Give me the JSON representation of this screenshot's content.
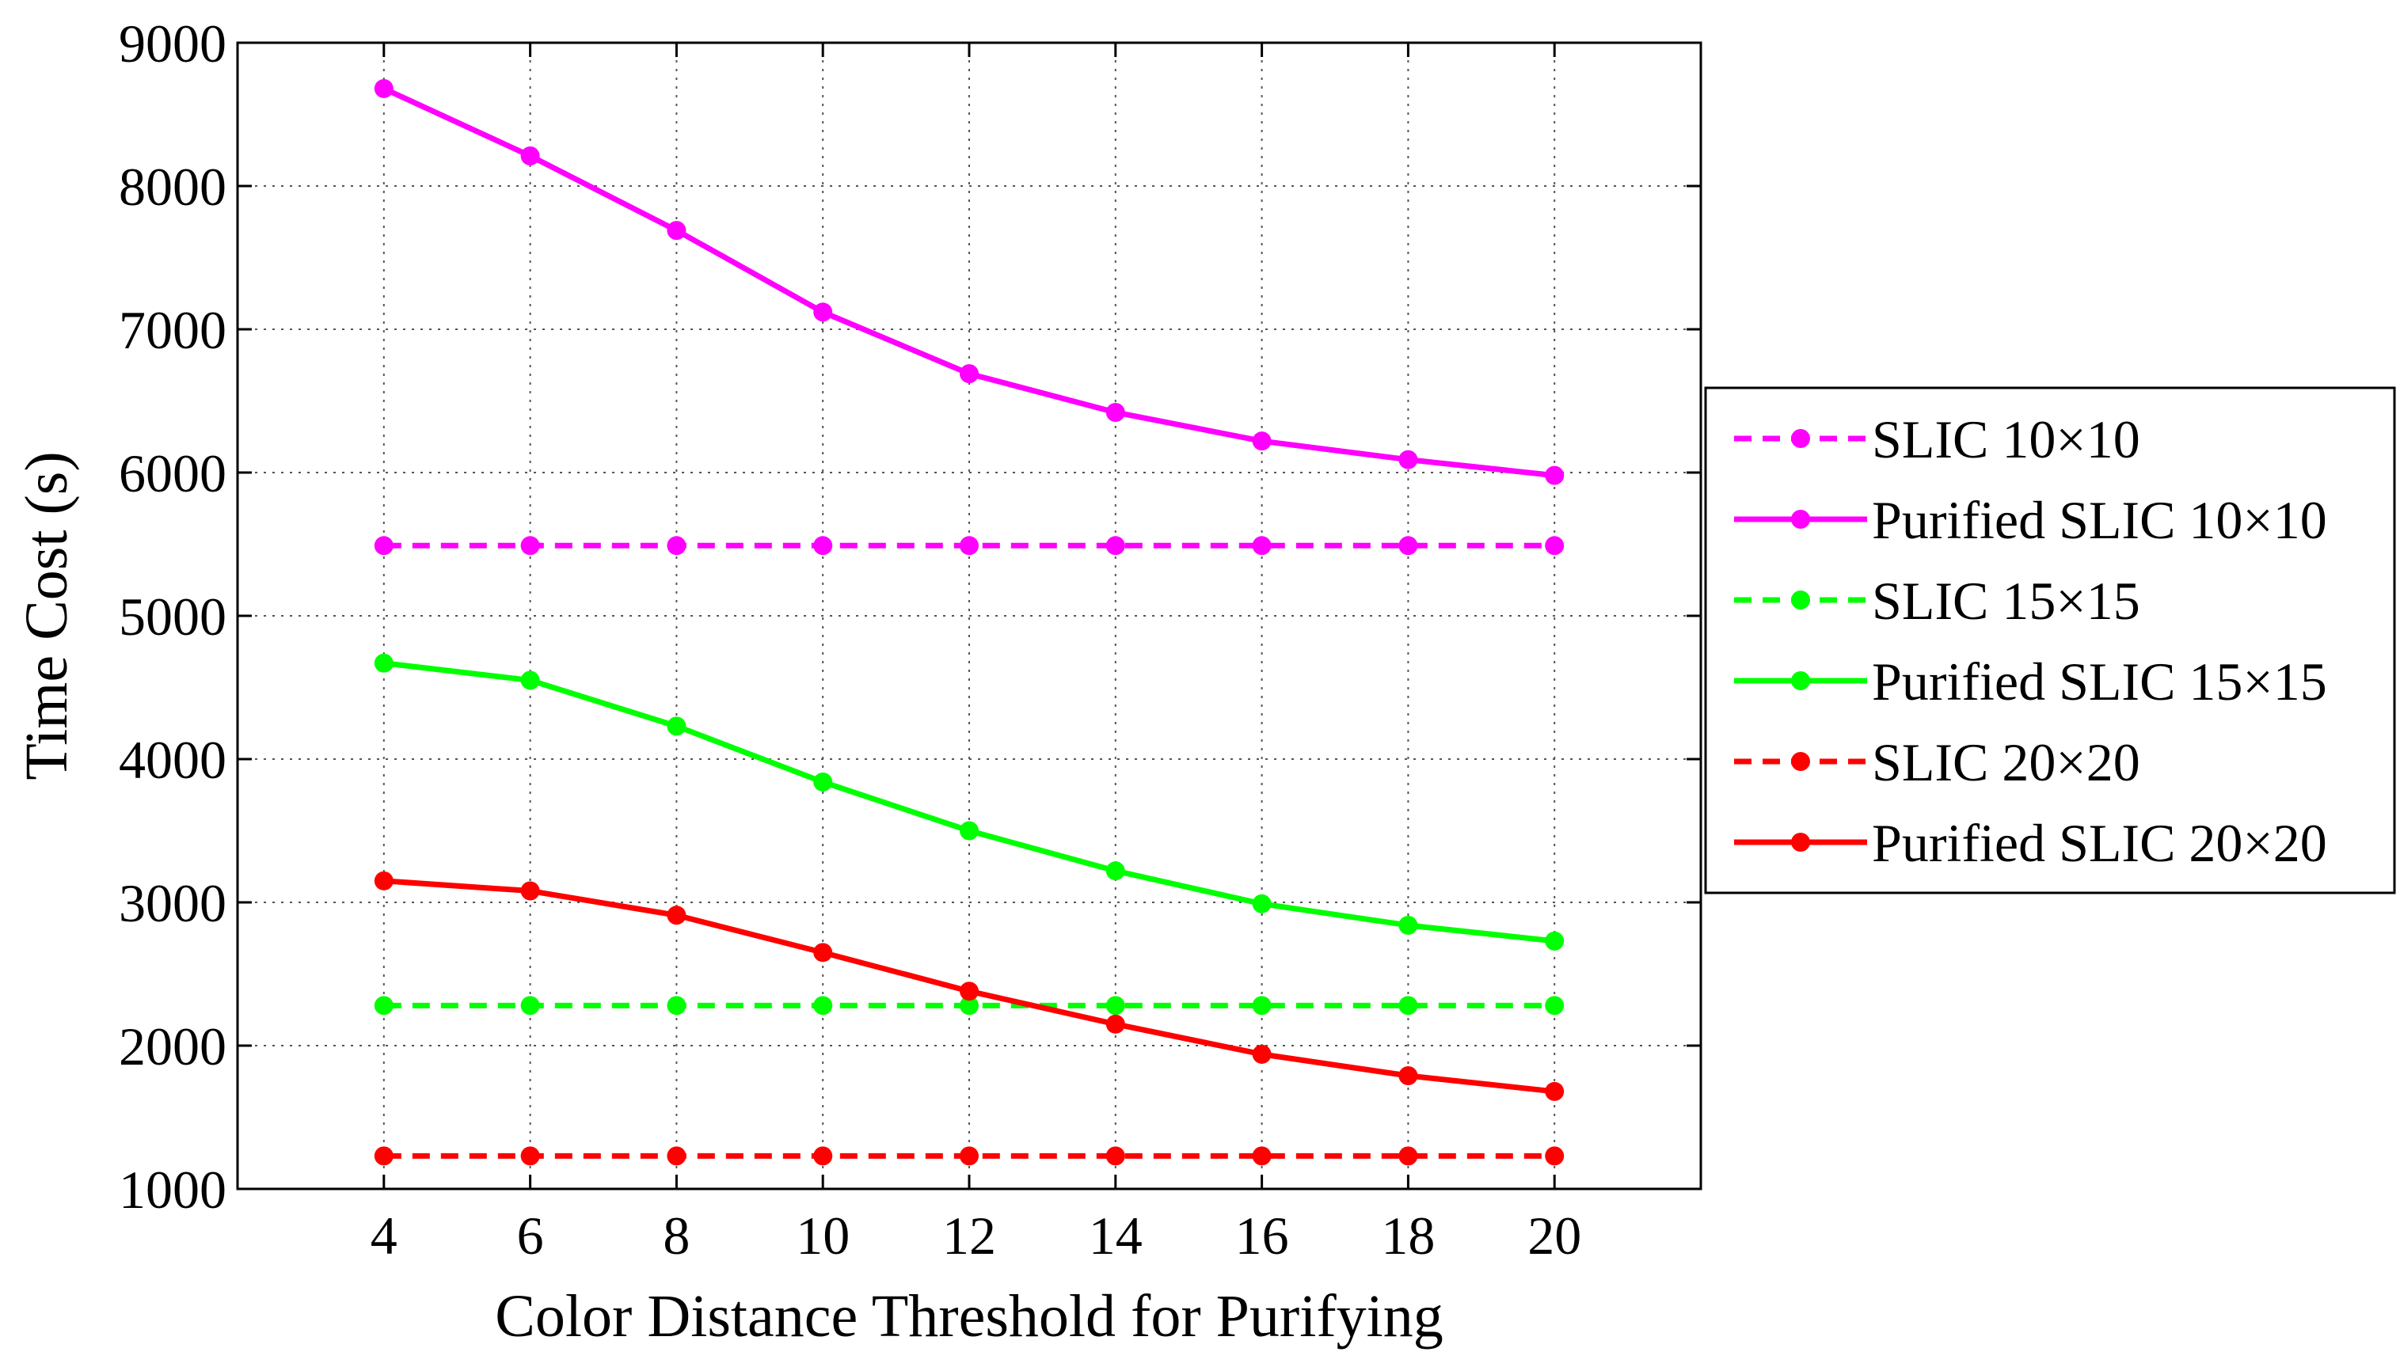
{
  "chart_data": {
    "type": "line",
    "title": "",
    "xlabel": "Color Distance Threshold for Purifying",
    "ylabel": "Time Cost (s)",
    "xlim": [
      2,
      22
    ],
    "ylim": [
      1000,
      9000
    ],
    "grid": true,
    "legend_position": "outside-right",
    "x": [
      4,
      6,
      8,
      10,
      12,
      14,
      16,
      18,
      20
    ],
    "xticks": [
      "4",
      "6",
      "8",
      "10",
      "12",
      "14",
      "16",
      "18",
      "20"
    ],
    "yticks": [
      "1000",
      "2000",
      "3000",
      "4000",
      "5000",
      "6000",
      "7000",
      "8000",
      "9000"
    ],
    "series": [
      {
        "name": "SLIC 10×10",
        "color": "#ff00ff",
        "style": "dashed",
        "values": [
          5490,
          5490,
          5490,
          5490,
          5490,
          5490,
          5490,
          5490,
          5490
        ]
      },
      {
        "name": "Purified SLIC 10×10",
        "color": "#ff00ff",
        "style": "solid",
        "values": [
          8680,
          8210,
          7690,
          7120,
          6690,
          6420,
          6220,
          6090,
          5980
        ]
      },
      {
        "name": "SLIC 15×15",
        "color": "#00ff00",
        "style": "dashed",
        "values": [
          2280,
          2280,
          2280,
          2280,
          2280,
          2280,
          2280,
          2280,
          2280
        ]
      },
      {
        "name": "Purified SLIC 15×15",
        "color": "#00ff00",
        "style": "solid",
        "values": [
          4670,
          4550,
          4230,
          3840,
          3500,
          3220,
          2990,
          2840,
          2730
        ]
      },
      {
        "name": "SLIC 20×20",
        "color": "#ff0000",
        "style": "dashed",
        "values": [
          1230,
          1230,
          1230,
          1230,
          1230,
          1230,
          1230,
          1230,
          1230
        ]
      },
      {
        "name": "Purified SLIC 20×20",
        "color": "#ff0000",
        "style": "solid",
        "values": [
          3150,
          3080,
          2910,
          2650,
          2380,
          2150,
          1940,
          1790,
          1680
        ]
      }
    ]
  }
}
